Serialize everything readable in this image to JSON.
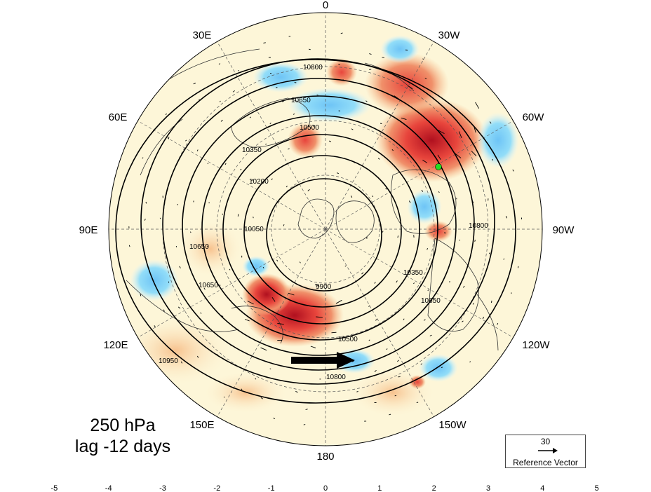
{
  "map": {
    "projection": "polar-stereographic-north",
    "longitude_labels": [
      "0",
      "30W",
      "60W",
      "90W",
      "120W",
      "150W",
      "180",
      "150E",
      "120E",
      "90E",
      "60E",
      "30E"
    ],
    "contour_field": "geopotential height",
    "contour_labels": [
      "10800",
      "10650",
      "10500",
      "10350",
      "10200",
      "10050",
      "9900",
      "10950"
    ],
    "marker": {
      "type": "point",
      "color": "#22dd22"
    },
    "anomaly_centers": [
      {
        "region": "north atlantic / greenland",
        "sign": "positive",
        "magnitude": 5
      },
      {
        "region": "barents sea",
        "sign": "positive",
        "magnitude": 4
      },
      {
        "region": "northern europe",
        "sign": "positive",
        "magnitude": 3
      },
      {
        "region": "east asia / japan",
        "sign": "positive",
        "magnitude": 5
      },
      {
        "region": "north pacific",
        "sign": "negative",
        "magnitude": -3
      },
      {
        "region": "north atlantic",
        "sign": "negative",
        "magnitude": -3
      }
    ]
  },
  "caption": {
    "level": "250 hPa",
    "lag": "lag -12 days"
  },
  "reference_vector": {
    "magnitude": "30",
    "label": "Reference Vector"
  },
  "colorbar": {
    "ticks": [
      "-5",
      "-4",
      "-3",
      "-2",
      "-1",
      "0",
      "1",
      "2",
      "3",
      "4",
      "5"
    ],
    "colors": [
      "#2d1fb8",
      "#3a5fe0",
      "#4a8ff0",
      "#6ec4f6",
      "#92ddf8",
      "#dff6fc",
      "#fdf4d4",
      "#f7c28e",
      "#f0906a",
      "#e8453c",
      "#c11a22",
      "#9a0a1a"
    ]
  }
}
